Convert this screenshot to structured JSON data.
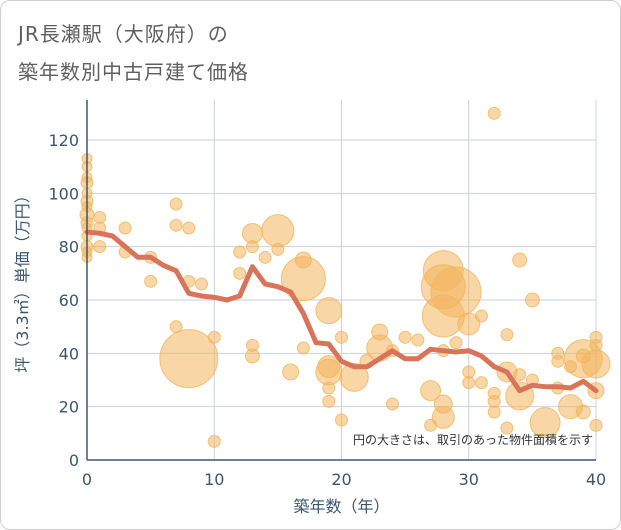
{
  "title_line1": "JR長瀬駅（大阪府）の",
  "title_line2": "築年数別中古戸建て価格",
  "chart_data": {
    "type": "scatter",
    "xlabel": "築年数（年）",
    "ylabel": "坪（3.3㎡）単価（万円）",
    "xlim": [
      0,
      40
    ],
    "ylim": [
      0,
      135
    ],
    "xticks": [
      0,
      10,
      20,
      30,
      40
    ],
    "yticks": [
      0,
      20,
      40,
      60,
      80,
      100,
      120
    ],
    "grid": true,
    "note": "円の大きさは、取引のあった物件面積を示す",
    "colors": {
      "bubble": "#f2b55d",
      "line": "#d9735a",
      "grid": "#c9d1de",
      "axis": "#3d5670"
    },
    "bubbles": [
      {
        "x": 0,
        "y": 113,
        "s": 5
      },
      {
        "x": 0,
        "y": 110,
        "s": 5
      },
      {
        "x": 0,
        "y": 106,
        "s": 5
      },
      {
        "x": 0,
        "y": 104,
        "s": 6
      },
      {
        "x": 0,
        "y": 100,
        "s": 5
      },
      {
        "x": 0,
        "y": 97,
        "s": 6
      },
      {
        "x": 0,
        "y": 95,
        "s": 5
      },
      {
        "x": 0,
        "y": 92,
        "s": 7
      },
      {
        "x": 0,
        "y": 89,
        "s": 6
      },
      {
        "x": 0,
        "y": 87,
        "s": 5
      },
      {
        "x": 0,
        "y": 84,
        "s": 5
      },
      {
        "x": 0,
        "y": 80,
        "s": 6
      },
      {
        "x": 0,
        "y": 78,
        "s": 5
      },
      {
        "x": 0,
        "y": 76,
        "s": 5
      },
      {
        "x": 1,
        "y": 91,
        "s": 6
      },
      {
        "x": 1,
        "y": 87,
        "s": 6
      },
      {
        "x": 1,
        "y": 80,
        "s": 6
      },
      {
        "x": 3,
        "y": 87,
        "s": 6
      },
      {
        "x": 3,
        "y": 78,
        "s": 6
      },
      {
        "x": 5,
        "y": 76,
        "s": 6
      },
      {
        "x": 5,
        "y": 67,
        "s": 6
      },
      {
        "x": 7,
        "y": 96,
        "s": 6
      },
      {
        "x": 7,
        "y": 88,
        "s": 6
      },
      {
        "x": 7,
        "y": 50,
        "s": 6
      },
      {
        "x": 8,
        "y": 87,
        "s": 6
      },
      {
        "x": 8,
        "y": 67,
        "s": 6
      },
      {
        "x": 9,
        "y": 66,
        "s": 6
      },
      {
        "x": 8,
        "y": 38,
        "s": 29
      },
      {
        "x": 10,
        "y": 46,
        "s": 6
      },
      {
        "x": 10,
        "y": 7,
        "s": 6
      },
      {
        "x": 12,
        "y": 78,
        "s": 6
      },
      {
        "x": 12,
        "y": 70,
        "s": 6
      },
      {
        "x": 13,
        "y": 85,
        "s": 10
      },
      {
        "x": 13,
        "y": 80,
        "s": 6
      },
      {
        "x": 13,
        "y": 43,
        "s": 6
      },
      {
        "x": 13,
        "y": 39,
        "s": 7
      },
      {
        "x": 14,
        "y": 76,
        "s": 6
      },
      {
        "x": 15,
        "y": 86,
        "s": 16
      },
      {
        "x": 15,
        "y": 79,
        "s": 6
      },
      {
        "x": 16,
        "y": 33,
        "s": 8
      },
      {
        "x": 17,
        "y": 75,
        "s": 8
      },
      {
        "x": 17,
        "y": 68,
        "s": 22
      },
      {
        "x": 17,
        "y": 42,
        "s": 6
      },
      {
        "x": 19,
        "y": 56,
        "s": 13
      },
      {
        "x": 19,
        "y": 35,
        "s": 11
      },
      {
        "x": 19,
        "y": 33,
        "s": 13
      },
      {
        "x": 19,
        "y": 27,
        "s": 6
      },
      {
        "x": 19,
        "y": 22,
        "s": 6
      },
      {
        "x": 20,
        "y": 46,
        "s": 6
      },
      {
        "x": 20,
        "y": 15,
        "s": 6
      },
      {
        "x": 21,
        "y": 31,
        "s": 14
      },
      {
        "x": 22,
        "y": 37,
        "s": 7
      },
      {
        "x": 23,
        "y": 48,
        "s": 8
      },
      {
        "x": 23,
        "y": 42,
        "s": 13
      },
      {
        "x": 24,
        "y": 41,
        "s": 6
      },
      {
        "x": 24,
        "y": 21,
        "s": 6
      },
      {
        "x": 25,
        "y": 46,
        "s": 6
      },
      {
        "x": 26,
        "y": 45,
        "s": 6
      },
      {
        "x": 27,
        "y": 26,
        "s": 10
      },
      {
        "x": 27,
        "y": 13,
        "s": 6
      },
      {
        "x": 28,
        "y": 71,
        "s": 20
      },
      {
        "x": 28,
        "y": 65,
        "s": 22
      },
      {
        "x": 28,
        "y": 54,
        "s": 21
      },
      {
        "x": 28,
        "y": 21,
        "s": 9
      },
      {
        "x": 28,
        "y": 16,
        "s": 11
      },
      {
        "x": 28,
        "y": 41,
        "s": 6
      },
      {
        "x": 29,
        "y": 63,
        "s": 25
      },
      {
        "x": 29,
        "y": 44,
        "s": 6
      },
      {
        "x": 30,
        "y": 51,
        "s": 11
      },
      {
        "x": 30,
        "y": 33,
        "s": 6
      },
      {
        "x": 30,
        "y": 29,
        "s": 6
      },
      {
        "x": 31,
        "y": 54,
        "s": 6
      },
      {
        "x": 31,
        "y": 29,
        "s": 6
      },
      {
        "x": 32,
        "y": 130,
        "s": 6
      },
      {
        "x": 32,
        "y": 25,
        "s": 6
      },
      {
        "x": 32,
        "y": 22,
        "s": 6
      },
      {
        "x": 32,
        "y": 18,
        "s": 6
      },
      {
        "x": 33,
        "y": 47,
        "s": 6
      },
      {
        "x": 33,
        "y": 33,
        "s": 10
      },
      {
        "x": 33,
        "y": 12,
        "s": 6
      },
      {
        "x": 34,
        "y": 75,
        "s": 7
      },
      {
        "x": 34,
        "y": 32,
        "s": 6
      },
      {
        "x": 34,
        "y": 24,
        "s": 14
      },
      {
        "x": 35,
        "y": 60,
        "s": 7
      },
      {
        "x": 35,
        "y": 30,
        "s": 6
      },
      {
        "x": 36,
        "y": 14,
        "s": 15
      },
      {
        "x": 37,
        "y": 40,
        "s": 6
      },
      {
        "x": 37,
        "y": 37,
        "s": 6
      },
      {
        "x": 37,
        "y": 27,
        "s": 6
      },
      {
        "x": 38,
        "y": 35,
        "s": 6
      },
      {
        "x": 38,
        "y": 20,
        "s": 12
      },
      {
        "x": 39,
        "y": 38,
        "s": 19
      },
      {
        "x": 39,
        "y": 39,
        "s": 7
      },
      {
        "x": 39,
        "y": 18,
        "s": 7
      },
      {
        "x": 40,
        "y": 46,
        "s": 6
      },
      {
        "x": 40,
        "y": 36,
        "s": 14
      },
      {
        "x": 40,
        "y": 26,
        "s": 8
      },
      {
        "x": 40,
        "y": 13,
        "s": 6
      },
      {
        "x": 40,
        "y": 43,
        "s": 6
      }
    ],
    "trend": [
      {
        "x": 0,
        "y": 85.5
      },
      {
        "x": 1,
        "y": 85
      },
      {
        "x": 2,
        "y": 84
      },
      {
        "x": 3,
        "y": 80
      },
      {
        "x": 4,
        "y": 76
      },
      {
        "x": 5,
        "y": 76
      },
      {
        "x": 6,
        "y": 73
      },
      {
        "x": 7,
        "y": 71
      },
      {
        "x": 8,
        "y": 62.5
      },
      {
        "x": 9,
        "y": 61.5
      },
      {
        "x": 10,
        "y": 61
      },
      {
        "x": 11,
        "y": 60
      },
      {
        "x": 12,
        "y": 61.5
      },
      {
        "x": 13,
        "y": 72.5
      },
      {
        "x": 14,
        "y": 66
      },
      {
        "x": 15,
        "y": 65
      },
      {
        "x": 16,
        "y": 63
      },
      {
        "x": 17,
        "y": 55
      },
      {
        "x": 18,
        "y": 44
      },
      {
        "x": 19,
        "y": 43.5
      },
      {
        "x": 20,
        "y": 37
      },
      {
        "x": 21,
        "y": 35
      },
      {
        "x": 22,
        "y": 35
      },
      {
        "x": 23,
        "y": 38
      },
      {
        "x": 24,
        "y": 41
      },
      {
        "x": 25,
        "y": 38
      },
      {
        "x": 26,
        "y": 38
      },
      {
        "x": 27,
        "y": 41.5
      },
      {
        "x": 28,
        "y": 41
      },
      {
        "x": 29,
        "y": 40.5
      },
      {
        "x": 30,
        "y": 41
      },
      {
        "x": 31,
        "y": 39
      },
      {
        "x": 32,
        "y": 35
      },
      {
        "x": 33,
        "y": 33
      },
      {
        "x": 34,
        "y": 26
      },
      {
        "x": 35,
        "y": 28
      },
      {
        "x": 36,
        "y": 27.5
      },
      {
        "x": 37,
        "y": 27.5
      },
      {
        "x": 38,
        "y": 27
      },
      {
        "x": 39,
        "y": 29.5
      },
      {
        "x": 40,
        "y": 26
      }
    ]
  }
}
